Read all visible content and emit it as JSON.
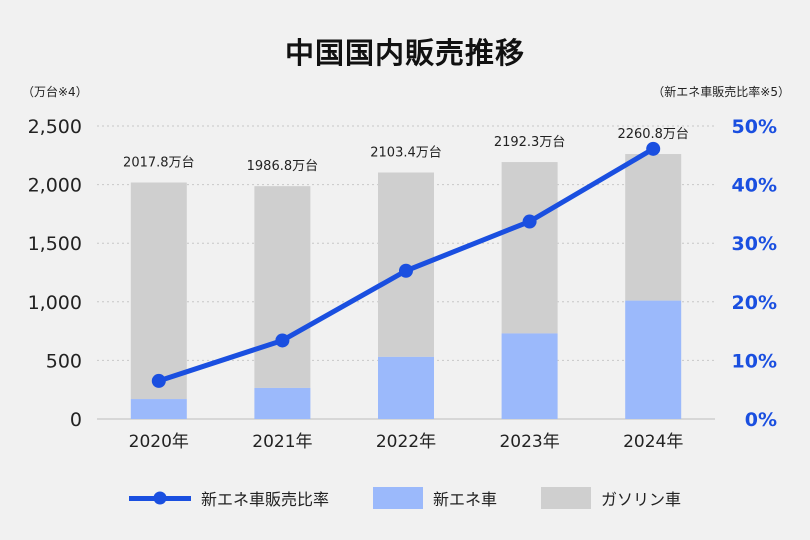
{
  "chart_data": {
    "type": "bar+line",
    "title": "中国国内販売推移",
    "left_axis_label": "（万台※4）",
    "right_axis_label": "（新エネ車販売比率※5）",
    "categories": [
      "2020年",
      "2021年",
      "2022年",
      "2023年",
      "2024年"
    ],
    "left_ticks": [
      "0",
      "500",
      "1,000",
      "1,500",
      "2,000",
      "2,500"
    ],
    "right_ticks": [
      "0%",
      "10%",
      "20%",
      "30%",
      "40%",
      "50%"
    ],
    "ylim_left": [
      0,
      2500
    ],
    "ylim_right": [
      0,
      50
    ],
    "series": [
      {
        "name": "新エネ車",
        "type": "bar",
        "color": "#9bb9fb",
        "values": [
          170,
          265,
          530,
          730,
          1010
        ]
      },
      {
        "name": "ガソリン車",
        "type": "bar",
        "color": "#cfcfcf",
        "values": [
          1847.8,
          1721.8,
          1573.4,
          1462.3,
          1250.8
        ]
      },
      {
        "name": "新エネ車販売比率",
        "type": "line",
        "color": "#1a4fe0",
        "values": [
          6.5,
          13.4,
          25.3,
          33.7,
          46.1
        ]
      }
    ],
    "total_labels": [
      "2017.8万台",
      "1986.8万台",
      "2103.4万台",
      "2192.3万台",
      "2260.8万台"
    ],
    "totals": [
      2017.8,
      1986.8,
      2103.4,
      2192.3,
      2260.8
    ]
  }
}
